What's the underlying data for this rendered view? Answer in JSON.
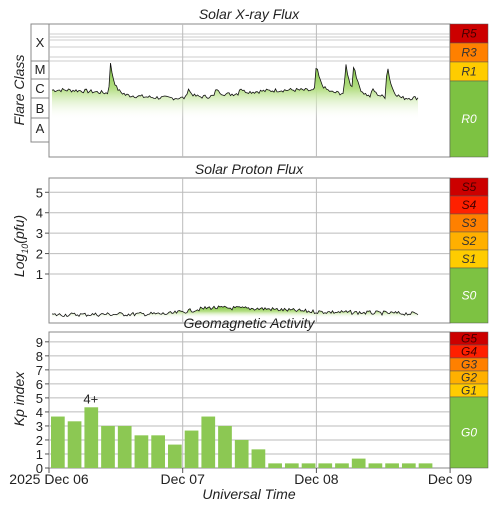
{
  "chart_data": [
    {
      "type": "area",
      "title": "Solar X-ray Flux",
      "ylabel": "Flare Class",
      "y_categories": [
        "A",
        "B",
        "C",
        "M",
        "X"
      ],
      "x_ticks": [
        "2025 Dec 06",
        "Dec 07",
        "Dec 08",
        "Dec 09"
      ],
      "baseline_class": "C",
      "peaks": [
        {
          "day": 0.46,
          "class": "M"
        },
        {
          "day": 1.04,
          "class": "C"
        },
        {
          "day": 1.25,
          "class": "C"
        },
        {
          "day": 1.43,
          "class": "C"
        },
        {
          "day": 2.0,
          "class": "M"
        },
        {
          "day": 2.22,
          "class": "M"
        },
        {
          "day": 2.28,
          "class": "M"
        },
        {
          "day": 2.42,
          "class": "C"
        },
        {
          "day": 2.53,
          "class": "M"
        }
      ],
      "scale_levels": [
        "R5",
        "R3",
        "R1",
        "R0"
      ],
      "scale_colors": [
        "#cc0000",
        "#ff8000",
        "#ffcc00",
        "#7dc242"
      ],
      "grid": true
    },
    {
      "type": "area",
      "title": "Solar Proton Flux",
      "ylabel": "Log10(pfu)",
      "ylabel_main": "Log",
      "ylabel_sub": "10",
      "ylabel_rest": "(pfu)",
      "y_ticks": [
        "1",
        "2",
        "3",
        "4",
        "5"
      ],
      "ylim": [
        -1.4,
        5.7
      ],
      "level_summary": [
        {
          "day": 0.0,
          "value": -1.0
        },
        {
          "day": 0.9,
          "value": -0.95
        },
        {
          "day": 1.2,
          "value": -0.65
        },
        {
          "day": 1.6,
          "value": -0.7
        },
        {
          "day": 2.0,
          "value": -0.85
        },
        {
          "day": 2.8,
          "value": -0.95
        }
      ],
      "scale_levels": [
        "S5",
        "S4",
        "S3",
        "S2",
        "S1",
        "S0"
      ],
      "scale_colors": [
        "#cc0000",
        "#ff2000",
        "#ff8000",
        "#ffb000",
        "#ffcc00",
        "#7dc242"
      ],
      "grid": true
    },
    {
      "type": "bar",
      "title": "Geomagnetic Activity",
      "ylabel": "Kp index",
      "xlabel": "Universal Time",
      "y_ticks": [
        "0",
        "1",
        "2",
        "3",
        "4",
        "5",
        "6",
        "7",
        "8",
        "9"
      ],
      "ylim": [
        0,
        9.7
      ],
      "x_ticks": [
        "2025 Dec 06",
        "Dec 07",
        "Dec 08",
        "Dec 09"
      ],
      "values": [
        3.67,
        3.33,
        4.33,
        3.0,
        3.0,
        2.33,
        2.33,
        1.67,
        2.67,
        3.67,
        3.0,
        2.0,
        1.33,
        0.33,
        0.33,
        0.33,
        0.33,
        0.33,
        0.67,
        0.33,
        0.33,
        0.33,
        0.33
      ],
      "annotation": {
        "bar_index": 2,
        "text": "4+"
      },
      "scale_levels": [
        "G5",
        "G4",
        "G3",
        "G2",
        "G1",
        "G0"
      ],
      "scale_colors": [
        "#cc0000",
        "#ff2000",
        "#ff8000",
        "#ffb000",
        "#ffcc00",
        "#7dc242"
      ],
      "grid": true
    }
  ]
}
